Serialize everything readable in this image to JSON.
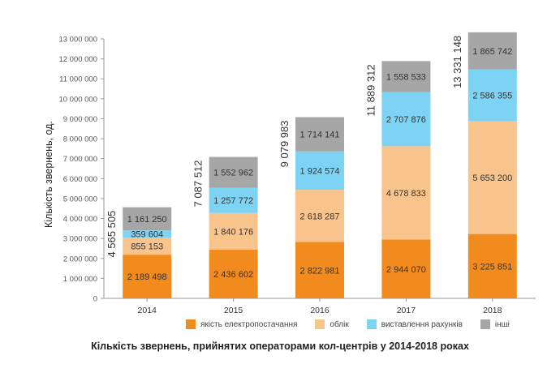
{
  "chart_data": {
    "type": "bar",
    "stacked": true,
    "title": "Кількість звернень, прийнятих операторами кол-центрів у 2014-2018 роках",
    "ylabel": "Кількість звернень, од.",
    "xlabel": "",
    "ylim": [
      0,
      13000000
    ],
    "yticks": [
      "0",
      "1 000 000",
      "2 000 000",
      "3 000 000",
      "4 000 000",
      "5 000 000",
      "6 000 000",
      "7 000 000",
      "8 000 000",
      "9 000 000",
      "10 000 000",
      "11 000 000",
      "12 000 000",
      "13 000 000"
    ],
    "categories": [
      "2014",
      "2015",
      "2016",
      "2017",
      "2018"
    ],
    "series": [
      {
        "name": "якість електропостачання",
        "color": "#F28B1E",
        "values": [
          2189498,
          2436602,
          2822981,
          2944070,
          3225851
        ],
        "labels": [
          "2 189 498",
          "2 436 602",
          "2 822 981",
          "2 944 070",
          "3 225 851"
        ]
      },
      {
        "name": "облік",
        "color": "#F9C48C",
        "values": [
          855153,
          1840176,
          2618287,
          4678833,
          5653200
        ],
        "labels": [
          "855 153",
          "1 840 176",
          "2 618 287",
          "4 678 833",
          "5 653 200"
        ]
      },
      {
        "name": "виставлення рахунків",
        "color": "#7DD3F3",
        "values": [
          359604,
          1257772,
          1924574,
          2707876,
          2586355
        ],
        "labels": [
          "359 604",
          "1 257 772",
          "1 924 574",
          "2 707 876",
          "2 586 355"
        ]
      },
      {
        "name": "інші",
        "color": "#A6A6A6",
        "values": [
          1161250,
          1552962,
          1714141,
          1558533,
          1865742
        ],
        "labels": [
          "1 161 250",
          "1 552 962",
          "1 714 141",
          "1 558 533",
          "1 865 742"
        ]
      }
    ],
    "totals": [
      "4 565 505",
      "7 087 512",
      "9 079 983",
      "11 889 312",
      "13 331 148"
    ],
    "grid": false,
    "legend_position": "bottom"
  }
}
